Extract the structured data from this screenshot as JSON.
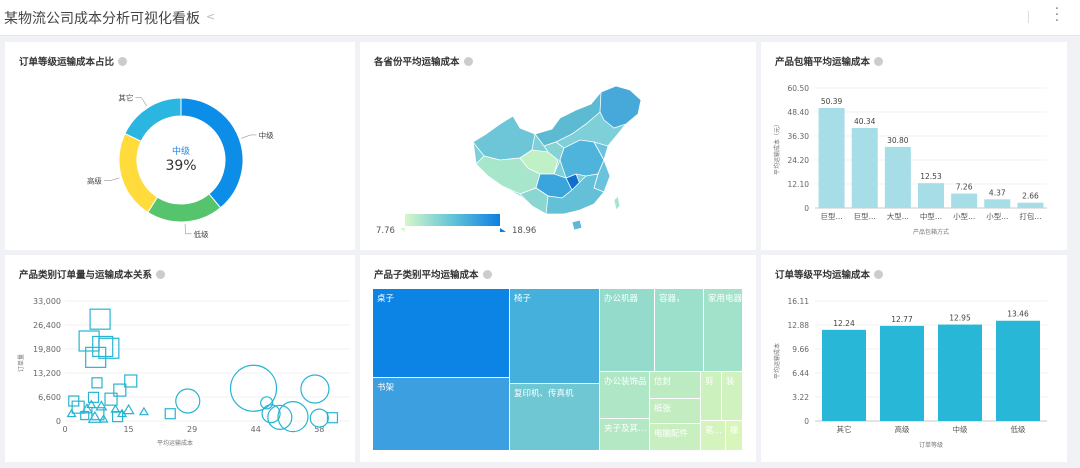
{
  "header": {
    "title": "某物流公司成本分析可视化看板"
  },
  "colors": {
    "primary": "#1e88e5",
    "donut": [
      "#0b8de8",
      "#55c46c",
      "#ffdb3c",
      "#2ab6e0"
    ],
    "bar": "#a6dde6",
    "bar2": "#28b7d6",
    "scatter": "#27b4d3"
  },
  "donut": {
    "title": "订单等级运输成本占比",
    "center_label": "中级",
    "center_value": "39%"
  },
  "map": {
    "title": "各省份平均运输成本",
    "min_label": "7.76",
    "max_label": "18.96"
  },
  "scatter_panel": {
    "title": "产品类别订单量与运输成本关系"
  },
  "treemap": {
    "title": "产品子类别平均运输成本",
    "cells": [
      "桌子",
      "椅子",
      "办公机器",
      "容器，",
      "家用电器",
      "书架",
      "复印机、传真机",
      "办公装饰品",
      "信封",
      "剪",
      "装",
      "纸张",
      "夹子及其…",
      "电脑配件",
      "笔…",
      "橡"
    ]
  },
  "chart_data": [
    {
      "type": "pie",
      "title": "订单等级运输成本占比",
      "categories": [
        "中级",
        "低级",
        "高级",
        "其它"
      ],
      "values": [
        39,
        20,
        23,
        18
      ],
      "legend": "none"
    },
    {
      "type": "scatter",
      "title": "产品类别订单量与运输成本关系",
      "xlabel": "平均运输成本",
      "ylabel": "订单量",
      "xlim": [
        0,
        65
      ],
      "ylim": [
        0,
        33000
      ],
      "xticks": [
        "0",
        "15",
        "29",
        "44",
        "58"
      ],
      "xtick_values": [
        0,
        14.5,
        29,
        43.5,
        58
      ],
      "yticks": [
        "0",
        "6,600",
        "13,200",
        "19,800",
        "26,400",
        "33,000"
      ],
      "ytick_values": [
        0,
        6600,
        13200,
        19800,
        26400,
        33000
      ],
      "points": [
        {
          "x": 1.5,
          "y": 2000,
          "shape": "triangle"
        },
        {
          "x": 2,
          "y": 5500,
          "shape": "square"
        },
        {
          "x": 3,
          "y": 3800,
          "shape": "square"
        },
        {
          "x": 4.5,
          "y": 1500,
          "shape": "square"
        },
        {
          "x": 5,
          "y": 3200,
          "shape": "triangle"
        },
        {
          "x": 5.5,
          "y": 22000,
          "shape": "square"
        },
        {
          "x": 6,
          "y": 4500,
          "shape": "triangle"
        },
        {
          "x": 6.5,
          "y": 6500,
          "shape": "square"
        },
        {
          "x": 6.8,
          "y": 800,
          "shape": "triangle"
        },
        {
          "x": 7,
          "y": 17500,
          "shape": "square"
        },
        {
          "x": 7.3,
          "y": 10500,
          "shape": "square"
        },
        {
          "x": 7.5,
          "y": 2000,
          "shape": "square"
        },
        {
          "x": 8,
          "y": 28000,
          "shape": "square"
        },
        {
          "x": 8.3,
          "y": 4000,
          "shape": "triangle"
        },
        {
          "x": 8.6,
          "y": 20500,
          "shape": "square"
        },
        {
          "x": 8.8,
          "y": 500,
          "shape": "triangle"
        },
        {
          "x": 10,
          "y": 20000,
          "shape": "square"
        },
        {
          "x": 10.5,
          "y": 6000,
          "shape": "square"
        },
        {
          "x": 11.5,
          "y": 3200,
          "shape": "triangle"
        },
        {
          "x": 12,
          "y": 1200,
          "shape": "square"
        },
        {
          "x": 12.5,
          "y": 8500,
          "shape": "square"
        },
        {
          "x": 13,
          "y": 2000,
          "shape": "triangle"
        },
        {
          "x": 14.5,
          "y": 3000,
          "shape": "triangle"
        },
        {
          "x": 15,
          "y": 11000,
          "shape": "square"
        },
        {
          "x": 18,
          "y": 2500,
          "shape": "triangle"
        },
        {
          "x": 24,
          "y": 2000,
          "shape": "square"
        },
        {
          "x": 28,
          "y": 5500,
          "shape": "circle"
        },
        {
          "x": 43,
          "y": 9000,
          "shape": "circle"
        },
        {
          "x": 46,
          "y": 5000,
          "shape": "circle"
        },
        {
          "x": 47,
          "y": 2000,
          "shape": "circle"
        },
        {
          "x": 49,
          "y": 1000,
          "shape": "circle"
        },
        {
          "x": 52,
          "y": 1200,
          "shape": "circle"
        },
        {
          "x": 57,
          "y": 8800,
          "shape": "circle"
        },
        {
          "x": 58,
          "y": 800,
          "shape": "circle"
        },
        {
          "x": 61,
          "y": 900,
          "shape": "square"
        }
      ]
    },
    {
      "type": "bar",
      "title": "产品包箱平均运输成本",
      "xlabel": "产品包箱方式",
      "ylabel": "平均运输成本（元）",
      "categories": [
        "巨型...",
        "巨型...",
        "大型...",
        "中型...",
        "小型...",
        "小型...",
        "打包..."
      ],
      "values": [
        50.39,
        40.34,
        30.8,
        12.53,
        7.26,
        4.37,
        2.66
      ],
      "value_labels": [
        "50.39",
        "40.34",
        "30.80",
        "12.53",
        "7.26",
        "4.37",
        "2.66"
      ],
      "yticks": [
        "0",
        "12.10",
        "24.20",
        "36.30",
        "48.40",
        "60.50"
      ],
      "ylim": [
        0,
        60.5
      ]
    },
    {
      "type": "bar",
      "title": "订单等级平均运输成本",
      "xlabel": "订单等级",
      "ylabel": "平均运输成本",
      "categories": [
        "其它",
        "高级",
        "中级",
        "低级"
      ],
      "values": [
        12.24,
        12.77,
        12.95,
        13.46
      ],
      "value_labels": [
        "12.24",
        "12.77",
        "12.95",
        "13.46"
      ],
      "yticks": [
        "0",
        "3.22",
        "6.44",
        "9.66",
        "12.88",
        "16.11"
      ],
      "ylim": [
        0,
        16.11
      ]
    },
    {
      "type": "heatmap",
      "title": "产品子类别平均运输成本",
      "categories": [
        "桌子",
        "书架",
        "椅子",
        "复印机、传真机",
        "办公机器",
        "容器，",
        "家用电器",
        "办公装饰品",
        "信封",
        "剪",
        "装",
        "纸张",
        "夹子及其…",
        "电脑配件",
        "笔…",
        "橡"
      ]
    }
  ]
}
